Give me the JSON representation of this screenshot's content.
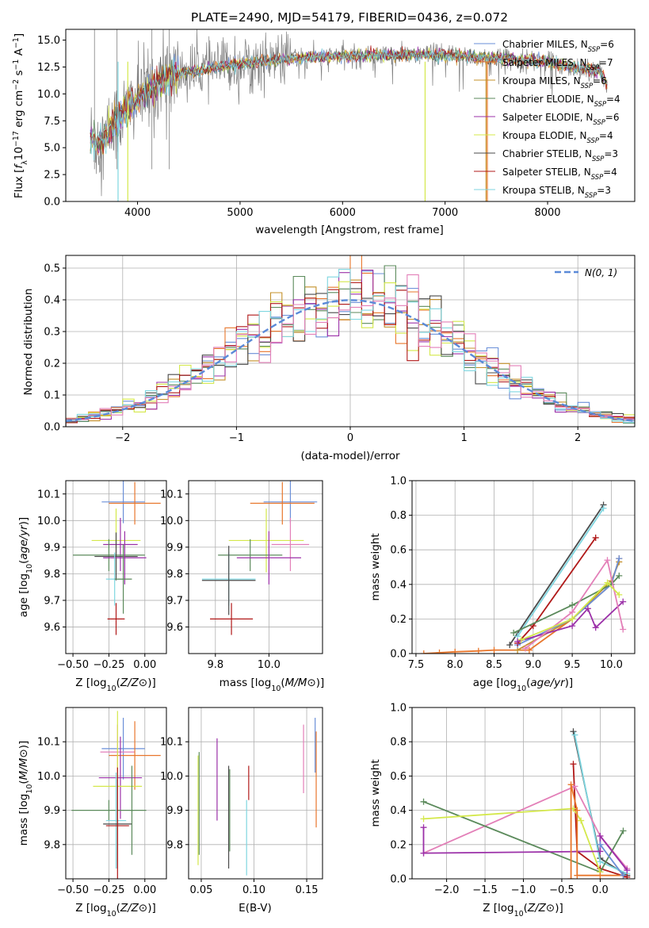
{
  "colors": {
    "Chabrier MILES": "#6a8fd8",
    "Salpeter MILES": "#e8762b",
    "Kroupa MILES": "#c4902a",
    "Chabrier ELODIE": "#5b8a5b",
    "Salpeter ELODIE": "#9b30a8",
    "Kroupa ELODIE": "#d4e84a",
    "Chabrier STELIB": "#4a4a4a",
    "Salpeter STELIB": "#b01818",
    "Kroupa STELIB": "#7fd6e0",
    "pink": "#e37fb8",
    "gauss": "#5b8ad8",
    "data_gray": "#808080"
  },
  "chart_data": [
    {
      "id": "spectrum",
      "type": "line",
      "title": "PLATE=2490, MJD=54179, FIBERID=0436, z=0.072",
      "xlabel": "wavelength [Angstrom, rest frame]",
      "ylabel": "Flux [f_λ 10^-17 erg cm^-2 s^-1 A^-1]",
      "xlim": [
        3300,
        8850
      ],
      "ylim": [
        0,
        16
      ],
      "xticks": [
        4000,
        5000,
        6000,
        7000,
        8000
      ],
      "yticks": [
        "0.0",
        "2.5",
        "5.0",
        "7.5",
        "10.0",
        "12.5",
        "15.0"
      ],
      "grid": false,
      "legend_position": "upper-right",
      "continuum": [
        [
          3540,
          6.0
        ],
        [
          3650,
          5.5
        ],
        [
          3750,
          7.0
        ],
        [
          3850,
          8.0
        ],
        [
          3950,
          9.2
        ],
        [
          4050,
          10.0
        ],
        [
          4200,
          11.0
        ],
        [
          4350,
          11.8
        ],
        [
          4600,
          12.2
        ],
        [
          5000,
          12.8
        ],
        [
          5500,
          13.3
        ],
        [
          6000,
          13.5
        ],
        [
          6500,
          13.6
        ],
        [
          7000,
          13.6
        ],
        [
          7500,
          13.3
        ],
        [
          8000,
          13.0
        ],
        [
          8300,
          12.4
        ],
        [
          8500,
          12.2
        ],
        [
          8580,
          11.0
        ]
      ],
      "legend": [
        {
          "model": "Chabrier MILES",
          "nssp": "6"
        },
        {
          "model": "Salpeter MILES",
          "nssp": "7"
        },
        {
          "model": "Kroupa MILES",
          "nssp": "6"
        },
        {
          "model": "Chabrier ELODIE",
          "nssp": "4"
        },
        {
          "model": "Salpeter ELODIE",
          "nssp": "6"
        },
        {
          "model": "Kroupa ELODIE",
          "nssp": "4"
        },
        {
          "model": "Chabrier STELIB",
          "nssp": "3"
        },
        {
          "model": "Salpeter STELIB",
          "nssp": "4"
        },
        {
          "model": "Kroupa STELIB",
          "nssp": "3"
        }
      ]
    },
    {
      "id": "residuals",
      "type": "step-histogram",
      "xlabel": "(data-model)/error",
      "ylabel": "Normed distribution",
      "xlim": [
        -2.5,
        2.5
      ],
      "ylim": [
        0,
        0.54
      ],
      "xticks": [
        "−2",
        "−1",
        "0",
        "1",
        "2"
      ],
      "yticks": [
        "0.0",
        "0.1",
        "0.2",
        "0.3",
        "0.4",
        "0.5"
      ],
      "grid": true,
      "bin_width": 0.1,
      "gauss_label": "N(0, 1)",
      "legend_position": "upper-right"
    },
    {
      "id": "age-vs-Z",
      "type": "errorbar",
      "xlabel": "Z [log10(Z/Z⊙)]",
      "ylabel": "age [log10(age/yr)]",
      "xlim": [
        -0.55,
        0.15
      ],
      "ylim": [
        9.5,
        10.15
      ],
      "xticks": [
        "−0.50",
        "−0.25",
        "0.00"
      ],
      "yticks": [
        "9.6",
        "9.7",
        "9.8",
        "9.9",
        "10.0",
        "10.1"
      ],
      "points": [
        {
          "model": "Chabrier MILES",
          "x": -0.15,
          "xerr": 0.15,
          "y": 10.07,
          "yerr": 0.08
        },
        {
          "model": "Salpeter MILES",
          "x": -0.07,
          "xerr": 0.18,
          "y": 10.065,
          "yerr": 0.08
        },
        {
          "model": "Kroupa ELODIE",
          "x": -0.2,
          "xerr": 0.17,
          "y": 9.925,
          "yerr": 0.12
        },
        {
          "model": "Salpeter ELODIE",
          "x": -0.17,
          "xerr": 0.12,
          "y": 9.91,
          "yerr": 0.1
        },
        {
          "model": "Chabrier ELODIE",
          "x": -0.25,
          "xerr": 0.25,
          "y": 9.87,
          "yerr": 0.06
        },
        {
          "model": "Chabrier STELIB",
          "x": -0.2,
          "xerr": 0.15,
          "y": 9.865,
          "yerr": 0.09
        },
        {
          "model": "Salpeter ELODIE",
          "x": -0.14,
          "xerr": 0.15,
          "y": 9.86,
          "yerr": 0.1
        },
        {
          "model": "Kroupa STELIB",
          "x": -0.21,
          "xerr": 0.06,
          "y": 9.78,
          "yerr": 0.1
        },
        {
          "model": "Chabrier ELODIE",
          "x": -0.15,
          "xerr": 0.06,
          "y": 9.78,
          "yerr": 0.13
        },
        {
          "model": "Salpeter STELIB",
          "x": -0.2,
          "xerr": 0.06,
          "y": 9.63,
          "yerr": 0.06
        }
      ]
    },
    {
      "id": "age-vs-mass",
      "type": "errorbar",
      "xlabel": "mass [log10(M/M⊙)]",
      "ylabel": "",
      "xlim": [
        9.7,
        10.2
      ],
      "ylim": [
        9.5,
        10.15
      ],
      "xticks": [
        "9.8",
        "10.0"
      ],
      "yticks": [
        "9.6",
        "9.7",
        "9.8",
        "9.9",
        "10.0",
        "10.1"
      ],
      "points": [
        {
          "model": "Chabrier MILES",
          "x": 10.08,
          "xerr": 0.1,
          "y": 10.07,
          "yerr": 0.08
        },
        {
          "model": "Salpeter MILES",
          "x": 10.05,
          "xerr": 0.12,
          "y": 10.065,
          "yerr": 0.08
        },
        {
          "model": "Kroupa ELODIE",
          "x": 9.99,
          "xerr": 0.14,
          "y": 9.925,
          "yerr": 0.12
        },
        {
          "model": "pink",
          "x": 10.08,
          "xerr": 0.07,
          "y": 9.91,
          "yerr": 0.1
        },
        {
          "model": "Chabrier ELODIE",
          "x": 9.93,
          "xerr": 0.12,
          "y": 9.87,
          "yerr": 0.06
        },
        {
          "model": "Salpeter ELODIE",
          "x": 10.0,
          "xerr": 0.12,
          "y": 9.86,
          "yerr": 0.1
        },
        {
          "model": "Kroupa STELIB",
          "x": 9.85,
          "xerr": 0.1,
          "y": 9.78,
          "yerr": 0.1
        },
        {
          "model": "Chabrier STELIB",
          "x": 9.85,
          "xerr": 0.1,
          "y": 9.775,
          "yerr": 0.13
        },
        {
          "model": "Salpeter STELIB",
          "x": 9.86,
          "xerr": 0.08,
          "y": 9.63,
          "yerr": 0.06
        }
      ]
    },
    {
      "id": "massweight-vs-age",
      "type": "line",
      "xlabel": "age [log10(age/yr)]",
      "ylabel": "mass weight",
      "xlim": [
        7.45,
        10.3
      ],
      "ylim": [
        0,
        1
      ],
      "xticks": [
        "7.5",
        "8.0",
        "8.5",
        "9.0",
        "9.5",
        "10.0"
      ],
      "yticks": [
        "0.0",
        "0.2",
        "0.4",
        "0.6",
        "0.8",
        "1.0"
      ],
      "series": [
        {
          "model": "Salpeter MILES",
          "points": [
            [
              7.6,
              0.0
            ],
            [
              7.8,
              0.005
            ],
            [
              8.0,
              0.01
            ],
            [
              8.3,
              0.015
            ],
            [
              8.5,
              0.02
            ],
            [
              8.95,
              0.02
            ],
            [
              9.5,
              0.2
            ],
            [
              10.0,
              0.4
            ],
            [
              10.1,
              0.55
            ]
          ]
        },
        {
          "model": "Kroupa MILES",
          "points": [
            [
              8.8,
              0.02
            ],
            [
              9.5,
              0.2
            ],
            [
              10.0,
              0.42
            ],
            [
              10.1,
              0.53
            ]
          ]
        },
        {
          "model": "Chabrier MILES",
          "points": [
            [
              8.8,
              0.05
            ],
            [
              9.5,
              0.2
            ],
            [
              10.0,
              0.4
            ],
            [
              10.1,
              0.55
            ]
          ]
        },
        {
          "model": "Chabrier STELIB",
          "points": [
            [
              8.7,
              0.05
            ],
            [
              9.9,
              0.86
            ]
          ]
        },
        {
          "model": "Kroupa STELIB",
          "points": [
            [
              8.8,
              0.1
            ],
            [
              9.9,
              0.84
            ]
          ]
        },
        {
          "model": "Salpeter STELIB",
          "points": [
            [
              8.8,
              0.06
            ],
            [
              9.0,
              0.16
            ],
            [
              9.8,
              0.67
            ]
          ]
        },
        {
          "model": "Chabrier ELODIE",
          "points": [
            [
              8.75,
              0.12
            ],
            [
              9.5,
              0.28
            ],
            [
              10.0,
              0.4
            ],
            [
              10.1,
              0.45
            ]
          ]
        },
        {
          "model": "Salpeter ELODIE",
          "points": [
            [
              8.8,
              0.07
            ],
            [
              9.5,
              0.16
            ],
            [
              9.7,
              0.26
            ],
            [
              9.8,
              0.15
            ],
            [
              10.15,
              0.3
            ]
          ]
        },
        {
          "model": "pink",
          "points": [
            [
              8.9,
              0.03
            ],
            [
              9.5,
              0.24
            ],
            [
              9.95,
              0.54
            ],
            [
              10.15,
              0.14
            ]
          ]
        },
        {
          "model": "Kroupa ELODIE",
          "points": [
            [
              8.85,
              0.08
            ],
            [
              9.5,
              0.2
            ],
            [
              9.95,
              0.41
            ],
            [
              10.1,
              0.34
            ]
          ]
        }
      ]
    },
    {
      "id": "mass-vs-Z",
      "type": "errorbar",
      "xlabel": "Z [log10(Z/Z⊙)]",
      "ylabel": "mass [log10(M/M⊙)]",
      "xlim": [
        -0.55,
        0.15
      ],
      "ylim": [
        9.7,
        10.2
      ],
      "xticks": [
        "−0.50",
        "−0.25",
        "0.00"
      ],
      "yticks": [
        "9.8",
        "9.9",
        "10.0",
        "10.1"
      ],
      "points": [
        {
          "model": "Chabrier MILES",
          "x": -0.15,
          "xerr": 0.15,
          "y": 10.08,
          "yerr": 0.09
        },
        {
          "model": "pink",
          "x": -0.19,
          "xerr": 0.12,
          "y": 10.07,
          "yerr": 0.08
        },
        {
          "model": "Salpeter MILES",
          "x": -0.07,
          "xerr": 0.18,
          "y": 10.06,
          "yerr": 0.1
        },
        {
          "model": "Salpeter ELODIE",
          "x": -0.17,
          "xerr": 0.15,
          "y": 9.995,
          "yerr": 0.12
        },
        {
          "model": "Kroupa ELODIE",
          "x": -0.19,
          "xerr": 0.17,
          "y": 9.97,
          "yerr": 0.22
        },
        {
          "model": "Chabrier ELODIE",
          "x": -0.25,
          "xerr": 0.26,
          "y": 9.9,
          "yerr": 0.03
        },
        {
          "model": "Kroupa STELIB",
          "x": -0.2,
          "xerr": 0.07,
          "y": 9.87,
          "yerr": 0.14
        },
        {
          "model": "Chabrier STELIB",
          "x": -0.19,
          "xerr": 0.1,
          "y": 9.86,
          "yerr": 0.13
        },
        {
          "model": "Salpeter STELIB",
          "x": -0.19,
          "xerr": 0.08,
          "y": 9.855,
          "yerr": 0.17
        },
        {
          "model": "Chabrier ELODIE",
          "x": -0.09,
          "xerr": 0.01,
          "y": 9.9,
          "yerr": 0.13
        }
      ]
    },
    {
      "id": "mass-vs-EBV",
      "type": "errorbar",
      "xlabel": "E(B-V)",
      "ylabel": "",
      "xlim": [
        0.038,
        0.165
      ],
      "ylim": [
        9.7,
        10.2
      ],
      "xticks": [
        "0.05",
        "0.10",
        "0.15"
      ],
      "yticks": [
        "9.8",
        "9.9",
        "10.0",
        "10.1"
      ],
      "points": [
        {
          "model": "Kroupa ELODIE",
          "x": 0.047,
          "xerr": 0,
          "y": 9.9,
          "yerr": 0.16
        },
        {
          "model": "Chabrier ELODIE",
          "x": 0.048,
          "xerr": 0,
          "y": 9.92,
          "yerr": 0.15
        },
        {
          "model": "Salpeter ELODIE",
          "x": 0.065,
          "xerr": 0,
          "y": 9.99,
          "yerr": 0.12
        },
        {
          "model": "Chabrier STELIB",
          "x": 0.076,
          "xerr": 0,
          "y": 9.88,
          "yerr": 0.15
        },
        {
          "model": "Chabrier ELODIE",
          "x": 0.077,
          "xerr": 0,
          "y": 9.9,
          "yerr": 0.12
        },
        {
          "model": "Kroupa STELIB",
          "x": 0.093,
          "xerr": 0,
          "y": 9.82,
          "yerr": 0.11
        },
        {
          "model": "Salpeter STELIB",
          "x": 0.095,
          "xerr": 0,
          "y": 9.98,
          "yerr": 0.05
        },
        {
          "model": "pink",
          "x": 0.147,
          "xerr": 0,
          "y": 10.05,
          "yerr": 0.1
        },
        {
          "model": "Salpeter MILES",
          "x": 0.159,
          "xerr": 0,
          "y": 9.99,
          "yerr": 0.14
        },
        {
          "model": "Chabrier MILES",
          "x": 0.158,
          "xerr": 0,
          "y": 10.09,
          "yerr": 0.08
        }
      ]
    },
    {
      "id": "massweight-vs-Z",
      "type": "line",
      "xlabel": "Z [log10(Z/Z⊙)]",
      "ylabel": "mass weight",
      "xlim": [
        -2.45,
        0.45
      ],
      "ylim": [
        0,
        1
      ],
      "xticks": [
        "−2.0",
        "−1.5",
        "−1.0",
        "−0.5",
        "0.0"
      ],
      "yticks": [
        "0.0",
        "0.2",
        "0.4",
        "0.6",
        "0.8",
        "1.0"
      ],
      "series": [
        {
          "model": "Chabrier STELIB",
          "points": [
            [
              -0.35,
              0.86
            ],
            [
              0.0,
              0.12
            ],
            [
              0.35,
              0.02
            ]
          ]
        },
        {
          "model": "Kroupa STELIB",
          "points": [
            [
              -0.33,
              0.84
            ],
            [
              0.0,
              0.1
            ],
            [
              0.35,
              0.03
            ]
          ]
        },
        {
          "model": "Salpeter STELIB",
          "points": [
            [
              -0.35,
              0.67
            ],
            [
              -0.3,
              0.16
            ],
            [
              0.0,
              0.06
            ],
            [
              0.35,
              0.01
            ]
          ]
        },
        {
          "model": "pink",
          "points": [
            [
              -2.3,
              0.15
            ],
            [
              -0.33,
              0.54
            ],
            [
              0.0,
              0.25
            ],
            [
              0.35,
              0.06
            ]
          ]
        },
        {
          "model": "Chabrier ELODIE",
          "points": [
            [
              -2.3,
              0.45
            ],
            [
              0.0,
              0.04
            ],
            [
              0.3,
              0.28
            ]
          ]
        },
        {
          "model": "Kroupa ELODIE",
          "points": [
            [
              -2.3,
              0.35
            ],
            [
              -0.35,
              0.41
            ],
            [
              -0.25,
              0.34
            ],
            [
              0.0,
              0.04
            ]
          ]
        },
        {
          "model": "Salpeter ELODIE",
          "points": [
            [
              -2.3,
              0.3
            ],
            [
              -2.3,
              0.15
            ],
            [
              0.0,
              0.16
            ],
            [
              0.0,
              0.25
            ],
            [
              0.35,
              0.05
            ]
          ]
        },
        {
          "model": "Salpeter MILES",
          "points": [
            [
              -0.38,
              0.0
            ],
            [
              -0.38,
              0.55
            ],
            [
              -0.3,
              0.4
            ],
            [
              -0.3,
              0.02
            ],
            [
              0.0,
              0.02
            ],
            [
              0.3,
              0.02
            ]
          ]
        },
        {
          "model": "Chabrier MILES",
          "points": [
            [
              0.0,
              0.2
            ],
            [
              0.3,
              0.02
            ]
          ]
        }
      ]
    }
  ]
}
